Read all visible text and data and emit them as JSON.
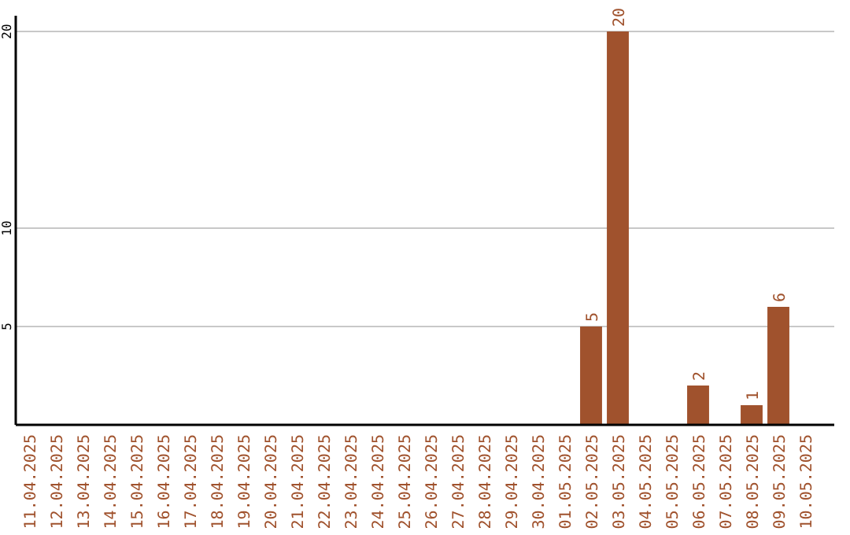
{
  "chart_data": {
    "type": "bar",
    "categories": [
      "11.04.2025",
      "12.04.2025",
      "13.04.2025",
      "14.04.2025",
      "15.04.2025",
      "16.04.2025",
      "17.04.2025",
      "18.04.2025",
      "19.04.2025",
      "20.04.2025",
      "21.04.2025",
      "22.04.2025",
      "23.04.2025",
      "24.04.2025",
      "25.04.2025",
      "26.04.2025",
      "27.04.2025",
      "28.04.2025",
      "29.04.2025",
      "30.04.2025",
      "01.05.2025",
      "02.05.2025",
      "03.05.2025",
      "04.05.2025",
      "05.05.2025",
      "06.05.2025",
      "07.05.2025",
      "08.05.2025",
      "09.05.2025",
      "10.05.2025"
    ],
    "values": [
      0,
      0,
      0,
      0,
      0,
      0,
      0,
      0,
      0,
      0,
      0,
      0,
      0,
      0,
      0,
      0,
      0,
      0,
      0,
      0,
      0,
      5,
      20,
      0,
      0,
      2,
      0,
      1,
      6,
      0
    ],
    "value_labels": [
      null,
      null,
      null,
      null,
      null,
      null,
      null,
      null,
      null,
      null,
      null,
      null,
      null,
      null,
      null,
      null,
      null,
      null,
      null,
      null,
      null,
      "5",
      "20",
      null,
      null,
      "2",
      null,
      "1",
      "6",
      null
    ],
    "color": "#a0522d",
    "ylim": [
      0,
      20
    ],
    "yticks": [
      5,
      10,
      20
    ],
    "grid": "y"
  }
}
